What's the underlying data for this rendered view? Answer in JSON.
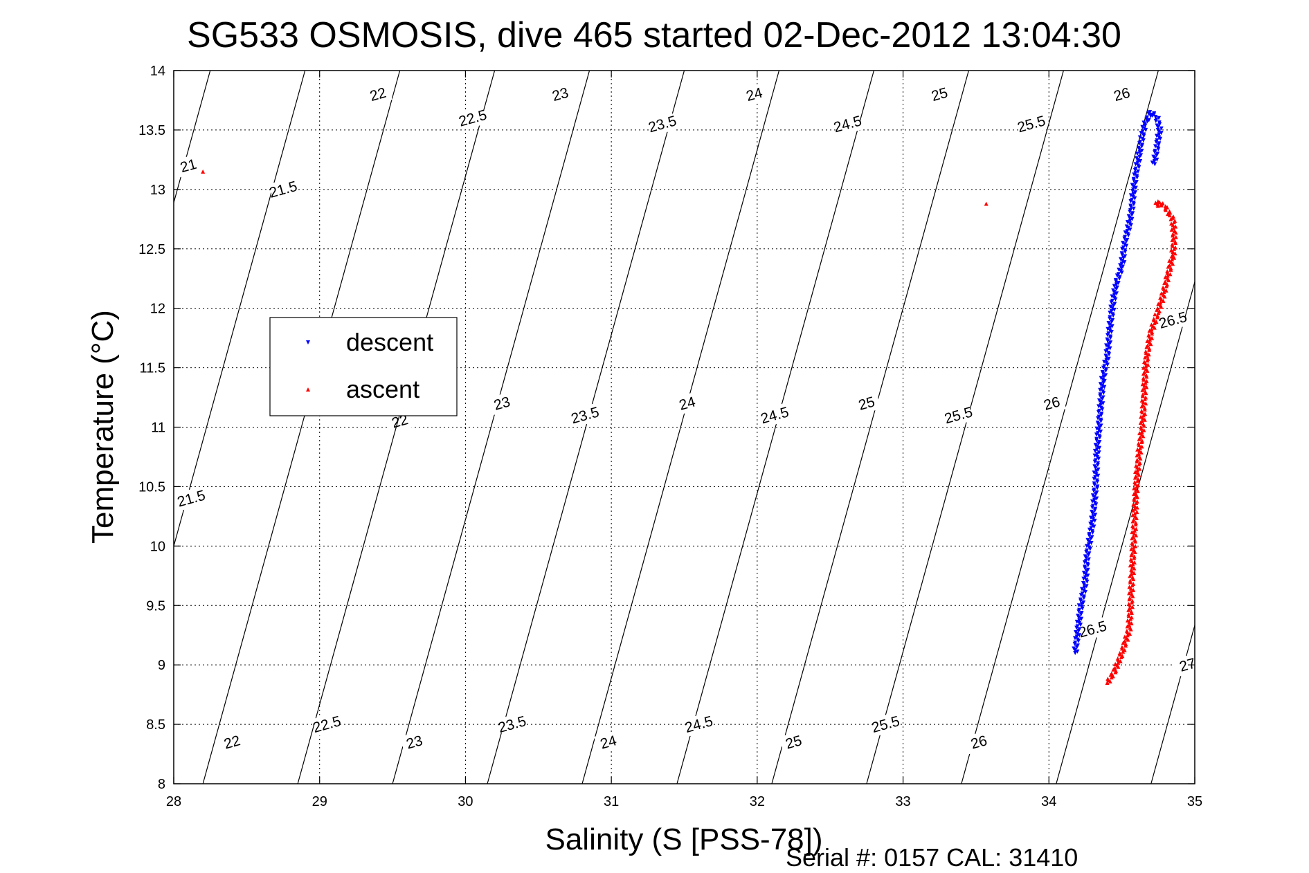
{
  "chart_data": {
    "type": "scatter",
    "title": "SG533 OSMOSIS, dive 465 started 02-Dec-2012 13:04:30",
    "xlabel": "Salinity (S [PSS-78])",
    "ylabel": "Temperature (°C)",
    "footer": "Serial #: 0157  CAL: 31410",
    "xlim": [
      28,
      35
    ],
    "ylim": [
      8,
      14
    ],
    "xticks": [
      28,
      29,
      30,
      31,
      32,
      33,
      34,
      35
    ],
    "yticks": [
      8,
      8.5,
      9,
      9.5,
      10,
      10.5,
      11,
      11.5,
      12,
      12.5,
      13,
      13.5,
      14
    ],
    "grid": true,
    "legend_position": "upper-left",
    "density_contours": [
      {
        "sigma": "21",
        "intercept": 28.25,
        "labels": [
          [
            28.1,
            13.2
          ]
        ]
      },
      {
        "sigma": "21.5",
        "intercept": 28.9,
        "labels": [
          [
            28.75,
            13.0
          ],
          [
            28.12,
            10.4
          ]
        ]
      },
      {
        "sigma": "22",
        "intercept": 29.55,
        "labels": [
          [
            29.4,
            13.8
          ],
          [
            29.55,
            11.05
          ],
          [
            28.4,
            8.35
          ]
        ]
      },
      {
        "sigma": "22.5",
        "intercept": 30.2,
        "labels": [
          [
            30.05,
            13.6
          ],
          [
            29.05,
            8.5
          ]
        ]
      },
      {
        "sigma": "23",
        "intercept": 30.85,
        "labels": [
          [
            30.65,
            13.8
          ],
          [
            30.25,
            11.2
          ],
          [
            29.65,
            8.35
          ]
        ]
      },
      {
        "sigma": "23.5",
        "intercept": 31.5,
        "labels": [
          [
            31.35,
            13.55
          ],
          [
            30.82,
            11.1
          ],
          [
            30.32,
            8.5
          ]
        ]
      },
      {
        "sigma": "24",
        "intercept": 32.15,
        "labels": [
          [
            31.98,
            13.8
          ],
          [
            31.52,
            11.2
          ],
          [
            30.98,
            8.35
          ]
        ]
      },
      {
        "sigma": "24.5",
        "intercept": 32.8,
        "labels": [
          [
            32.62,
            13.55
          ],
          [
            32.12,
            11.1
          ],
          [
            31.6,
            8.5
          ]
        ]
      },
      {
        "sigma": "25",
        "intercept": 33.45,
        "labels": [
          [
            33.25,
            13.8
          ],
          [
            32.75,
            11.2
          ],
          [
            32.25,
            8.35
          ]
        ]
      },
      {
        "sigma": "25.5",
        "intercept": 34.1,
        "labels": [
          [
            33.88,
            13.55
          ],
          [
            33.38,
            11.1
          ],
          [
            32.88,
            8.5
          ]
        ]
      },
      {
        "sigma": "26",
        "intercept": 34.75,
        "labels": [
          [
            34.5,
            13.8
          ],
          [
            34.02,
            11.2
          ],
          [
            33.52,
            8.35
          ]
        ]
      },
      {
        "sigma": "26.5",
        "intercept": 35.4,
        "labels": [
          [
            34.85,
            11.9
          ],
          [
            34.3,
            9.3
          ]
        ]
      },
      {
        "sigma": "27",
        "intercept": 36.05,
        "labels": [
          [
            34.95,
            9.0
          ]
        ]
      }
    ],
    "series": [
      {
        "name": "descent",
        "color": "#0000ff",
        "marker": "triangle-down",
        "x": [
          34.18,
          34.2,
          34.22,
          34.25,
          34.26,
          34.3,
          34.32,
          34.33,
          34.35,
          34.37,
          34.4,
          34.42,
          34.44,
          34.46,
          34.5,
          34.52,
          34.55,
          34.57,
          34.58,
          34.6,
          34.62,
          34.64,
          34.66,
          34.7,
          34.74,
          34.76,
          34.74,
          34.72
        ],
        "y": [
          9.1,
          9.3,
          9.5,
          9.7,
          9.9,
          10.2,
          10.5,
          10.8,
          11.1,
          11.4,
          11.6,
          11.85,
          12.05,
          12.2,
          12.35,
          12.55,
          12.7,
          12.85,
          13.0,
          13.15,
          13.3,
          13.45,
          13.55,
          13.65,
          13.6,
          13.5,
          13.35,
          13.2
        ]
      },
      {
        "name": "ascent",
        "color": "#ff0000",
        "marker": "triangle-up",
        "x": [
          34.4,
          34.45,
          34.5,
          34.55,
          34.56,
          34.57,
          34.58,
          34.59,
          34.6,
          34.62,
          34.64,
          34.65,
          34.66,
          34.67,
          34.7,
          34.74,
          34.78,
          34.82,
          34.85,
          34.86,
          34.85,
          34.8,
          34.75,
          34.73
        ],
        "y": [
          8.85,
          8.95,
          9.1,
          9.3,
          9.5,
          9.8,
          10.0,
          10.3,
          10.55,
          10.8,
          11.0,
          11.2,
          11.45,
          11.6,
          11.8,
          11.95,
          12.1,
          12.3,
          12.45,
          12.6,
          12.75,
          12.85,
          12.9,
          12.85
        ]
      },
      {
        "name": "",
        "color": "#ff0000",
        "marker": "triangle-up",
        "x": [
          28.2,
          33.57
        ],
        "y": [
          13.15,
          12.88
        ]
      }
    ],
    "legend": [
      {
        "label": "descent",
        "color": "#0000ff",
        "marker": "triangle-down"
      },
      {
        "label": "ascent",
        "color": "#ff0000",
        "marker": "triangle-up"
      }
    ]
  }
}
